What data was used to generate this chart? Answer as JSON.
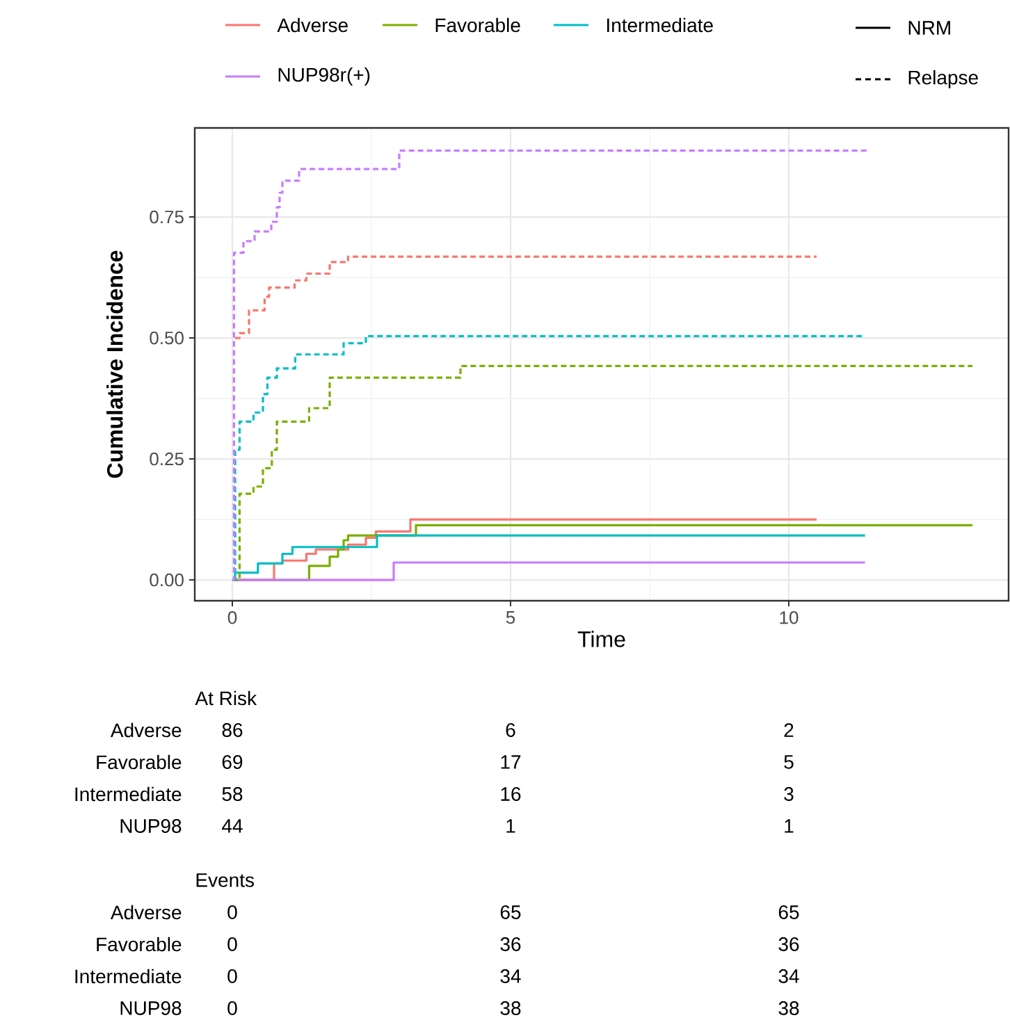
{
  "chart_data": [
    {
      "type": "step",
      "xlabel": "Time",
      "ylabel": "Cumulative Incidence",
      "xlim": [
        -0.675,
        13.95
      ],
      "ylim": [
        -0.043,
        0.934
      ],
      "xticks": [
        0,
        5,
        10
      ],
      "yticks": [
        {
          "value": 0,
          "label": "0.00"
        },
        {
          "value": 0.25,
          "label": "0.25"
        },
        {
          "value": 0.5,
          "label": "0.50"
        },
        {
          "value": 0.75,
          "label": "0.75"
        }
      ],
      "grid": true,
      "legend": "top",
      "annotations": [
        "NRM",
        "Relapse"
      ],
      "series": [
        {
          "name": "Adverse",
          "color": "#f8766d",
          "line_style": "solid",
          "x": [
            0,
            0.75,
            0.9,
            1.33,
            1.5,
            2.08,
            2.4,
            2.58,
            3.2,
            10.5
          ],
          "values": [
            0,
            0.034,
            0.04,
            0.054,
            0.063,
            0.073,
            0.087,
            0.1,
            0.125,
            0.125
          ]
        },
        {
          "name": "Favorable",
          "color": "#7cae00",
          "line_style": "solid",
          "x": [
            0,
            1.38,
            1.75,
            1.9,
            2.0,
            2.08,
            3.3,
            13.3
          ],
          "values": [
            0,
            0.029,
            0.048,
            0.063,
            0.082,
            0.092,
            0.113,
            0.113
          ]
        },
        {
          "name": "Intermediate",
          "color": "#00bfc4",
          "line_style": "solid",
          "x": [
            0,
            0.05,
            0.46,
            0.9,
            1.08,
            2.6,
            11.37
          ],
          "values": [
            0,
            0.015,
            0.034,
            0.054,
            0.068,
            0.092,
            0.092
          ]
        },
        {
          "name": "NUP98r(+)",
          "color": "#c77cff",
          "line_style": "solid",
          "x": [
            0,
            2.9,
            11.37
          ],
          "values": [
            0,
            0.036,
            0.036
          ]
        },
        {
          "color": "#f8766d",
          "line_style": "dashed",
          "x": [
            0.05,
            0.13,
            0.3,
            0.58,
            0.66,
            1.12,
            1.33,
            1.75,
            2.08,
            10.5
          ],
          "values": [
            0.5,
            0.51,
            0.557,
            0.585,
            0.604,
            0.619,
            0.633,
            0.657,
            0.668,
            0.668
          ]
        },
        {
          "color": "#7cae00",
          "line_style": "dashed",
          "x": [
            0,
            0.13,
            0.38,
            0.55,
            0.71,
            0.8,
            1.38,
            1.75,
            4.1,
            13.3
          ],
          "values": [
            0,
            0.178,
            0.193,
            0.231,
            0.269,
            0.327,
            0.355,
            0.418,
            0.442,
            0.442
          ]
        },
        {
          "color": "#00bfc4",
          "line_style": "dashed",
          "x": [
            0,
            0.05,
            0.13,
            0.38,
            0.55,
            0.63,
            0.8,
            1.13,
            2.0,
            2.4,
            11.37
          ],
          "values": [
            0,
            0.269,
            0.327,
            0.346,
            0.384,
            0.418,
            0.437,
            0.466,
            0.489,
            0.504,
            0.504
          ]
        },
        {
          "color": "#c77cff",
          "line_style": "dashed",
          "x": [
            0,
            0.03,
            0.2,
            0.4,
            0.7,
            0.8,
            0.85,
            0.9,
            1.2,
            3.0,
            11.45
          ],
          "values": [
            0,
            0.676,
            0.7,
            0.72,
            0.74,
            0.77,
            0.8,
            0.825,
            0.849,
            0.887,
            0.887
          ]
        }
      ]
    },
    {
      "type": "other",
      "title": "At Risk",
      "y_categories": [
        "Adverse",
        "Favorable",
        "Intermediate",
        "NUP98"
      ],
      "cells": [
        [
          "86",
          "6",
          "2"
        ],
        [
          "69",
          "17",
          "5"
        ],
        [
          "58",
          "16",
          "3"
        ],
        [
          "44",
          "1",
          "1"
        ]
      ]
    },
    {
      "type": "other",
      "title": "Events",
      "y_categories": [
        "Adverse",
        "Favorable",
        "Intermediate",
        "NUP98"
      ],
      "cells": [
        [
          "0",
          "65",
          "65"
        ],
        [
          "0",
          "36",
          "36"
        ],
        [
          "0",
          "34",
          "34"
        ],
        [
          "0",
          "38",
          "38"
        ]
      ]
    }
  ]
}
